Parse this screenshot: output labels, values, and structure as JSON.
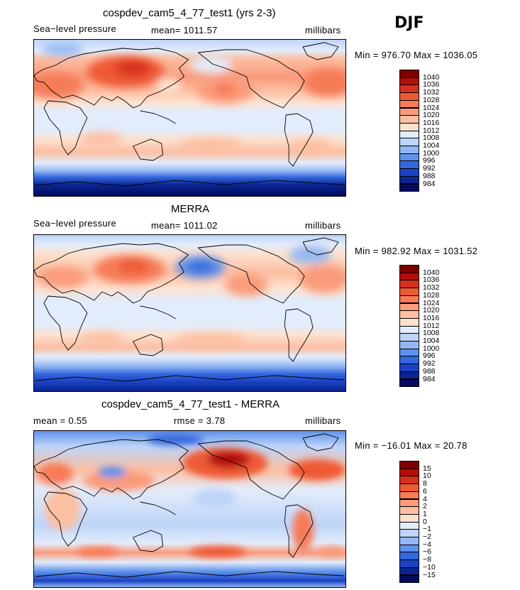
{
  "season": "DJF",
  "panels": [
    {
      "title": "cospdev_cam5_4_77_test1 (yrs 2-3)",
      "left": "Sea−level pressure",
      "center": "mean=  1011.57",
      "right": "millibars",
      "minmax": "Min = 976.70  Max = 1036.05",
      "colorbar": {
        "labels": [
          "1040",
          "1036",
          "1032",
          "1028",
          "1024",
          "1020",
          "1016",
          "1012",
          "1008",
          "1004",
          "1000",
          "996",
          "992",
          "988",
          "984"
        ],
        "colors": [
          "#7f0000",
          "#b30f0a",
          "#d7301f",
          "#ee5a34",
          "#f67c58",
          "#fa9b7c",
          "#fcbfa3",
          "#fde1cf",
          "#e2ecfb",
          "#bed4f8",
          "#93b7f2",
          "#5f92ea",
          "#3567dc",
          "#1a42c3",
          "#0a2592",
          "#040a5f"
        ]
      }
    },
    {
      "title": "MERRA",
      "left": "Sea−level pressure",
      "center": "mean=  1011.02",
      "right": "millibars",
      "minmax": "Min = 982.92  Max = 1031.52",
      "colorbar": {
        "labels": [
          "1040",
          "1036",
          "1032",
          "1028",
          "1024",
          "1020",
          "1016",
          "1012",
          "1008",
          "1004",
          "1000",
          "996",
          "992",
          "988",
          "984"
        ],
        "colors": [
          "#7f0000",
          "#b30f0a",
          "#d7301f",
          "#ee5a34",
          "#f67c58",
          "#fa9b7c",
          "#fcbfa3",
          "#fde1cf",
          "#e2ecfb",
          "#bed4f8",
          "#93b7f2",
          "#5f92ea",
          "#3567dc",
          "#1a42c3",
          "#0a2592",
          "#040a5f"
        ]
      }
    },
    {
      "title": "cospdev_cam5_4_77_test1 - MERRA",
      "left": "mean =     0.55",
      "center": "rmse =     3.78",
      "right": "millibars",
      "minmax": "Min = −16.01  Max =   20.78",
      "colorbar": {
        "labels": [
          "15",
          "10",
          "8",
          "6",
          "4",
          "2",
          "1",
          "0",
          "−1",
          "−2",
          "−4",
          "−6",
          "−8",
          "−10",
          "−15"
        ],
        "colors": [
          "#7f0000",
          "#b30f0a",
          "#d7301f",
          "#ee5a34",
          "#f67c58",
          "#fa9b7c",
          "#fcbfa3",
          "#fde1cf",
          "#e2ecfb",
          "#bed4f8",
          "#93b7f2",
          "#5f92ea",
          "#3567dc",
          "#1a42c3",
          "#0a2592",
          "#040a5f"
        ]
      }
    }
  ]
}
